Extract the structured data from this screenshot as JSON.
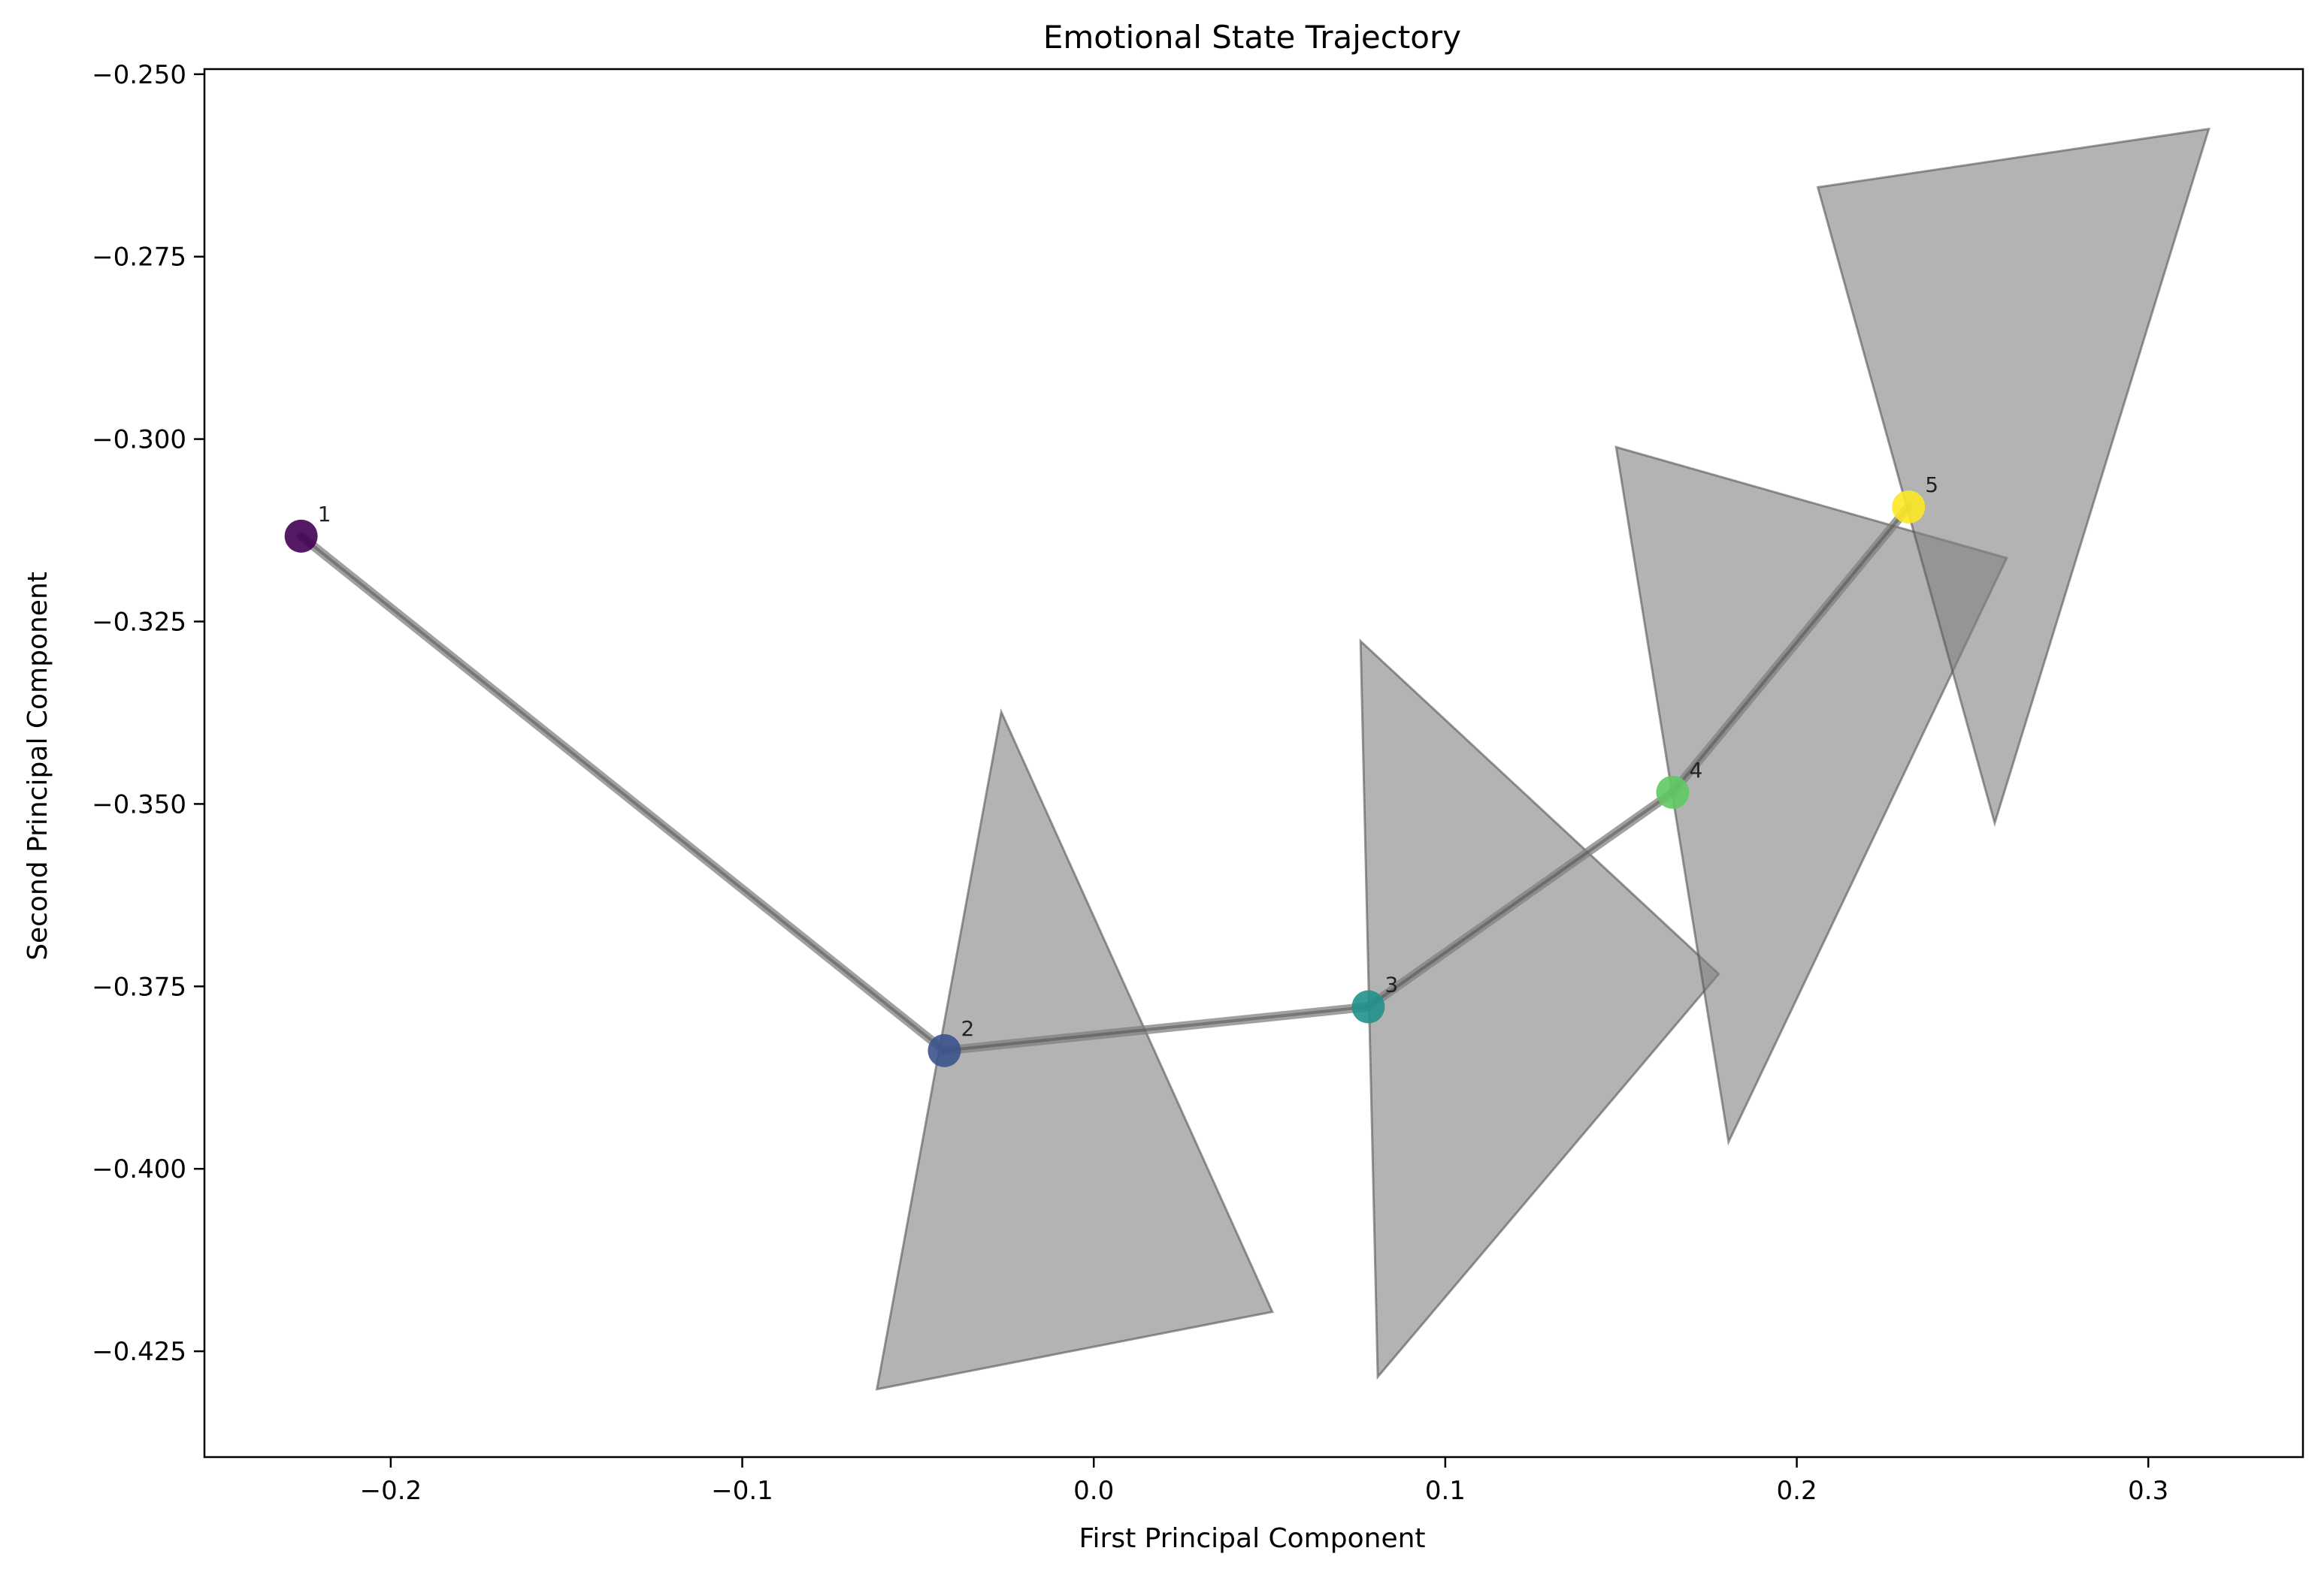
{
  "chart_data": {
    "type": "scatter",
    "title": "Emotional State Trajectory",
    "xlabel": "First Principal Component",
    "ylabel": "Second Principal Component",
    "xlim": [
      -0.253,
      0.344
    ],
    "ylim": [
      -0.4395,
      -0.2493
    ],
    "xticks": [
      -0.2,
      -0.1,
      0.0,
      0.1,
      0.2,
      0.3
    ],
    "xtick_labels": [
      "−0.2",
      "−0.1",
      "0.0",
      "0.1",
      "0.2",
      "0.3"
    ],
    "yticks": [
      -0.25,
      -0.275,
      -0.3,
      -0.325,
      -0.35,
      -0.375,
      -0.4,
      -0.425
    ],
    "ytick_labels": [
      "−0.250",
      "−0.275",
      "−0.300",
      "−0.325",
      "−0.350",
      "−0.375",
      "−0.400",
      "−0.425"
    ],
    "grid": false,
    "colormap": "viridis",
    "points": [
      {
        "label": "1",
        "x": -0.2255,
        "y": -0.3133,
        "color": "#440154"
      },
      {
        "label": "2",
        "x": -0.0425,
        "y": -0.3838,
        "color": "#3b528b"
      },
      {
        "label": "3",
        "x": 0.0781,
        "y": -0.3778,
        "color": "#21918c"
      },
      {
        "label": "4",
        "x": 0.1647,
        "y": -0.3484,
        "color": "#5ec962"
      },
      {
        "label": "5",
        "x": 0.2318,
        "y": -0.3093,
        "color": "#fde725"
      }
    ],
    "path_order": [
      "1",
      "2",
      "3",
      "4",
      "5"
    ],
    "triangles": [
      {
        "points": [
          [
            -0.0263,
            -0.3374
          ],
          [
            0.0508,
            -0.4196
          ],
          [
            -0.0617,
            -0.4302
          ]
        ]
      },
      {
        "points": [
          [
            0.0759,
            -0.3277
          ],
          [
            0.1778,
            -0.3733
          ],
          [
            0.0808,
            -0.4285
          ]
        ]
      },
      {
        "points": [
          [
            0.1486,
            -0.3011
          ],
          [
            0.2597,
            -0.3163
          ],
          [
            0.1806,
            -0.3963
          ]
        ]
      },
      {
        "points": [
          [
            0.206,
            -0.2655
          ],
          [
            0.3172,
            -0.2575
          ],
          [
            0.2563,
            -0.3526
          ]
        ]
      }
    ],
    "triangle_color": "#808080",
    "line_color": "#808080"
  }
}
